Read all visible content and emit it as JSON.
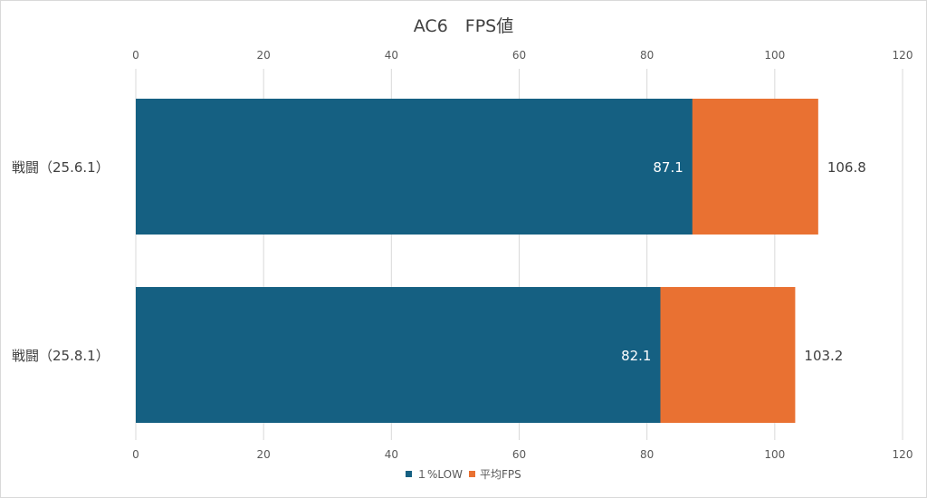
{
  "chart_data": {
    "type": "bar",
    "orientation": "horizontal",
    "stacking": "overlapped",
    "title": "AC6　FPS値",
    "categories": [
      "戦闘（25.6.1）",
      "戦闘（25.8.1）"
    ],
    "series": [
      {
        "name": "平均FPS",
        "values": [
          106.8,
          103.2
        ],
        "color": "#E97132",
        "label_position": "outside-end"
      },
      {
        "name": "１%LOW",
        "values": [
          87.1,
          82.1
        ],
        "color": "#156082",
        "label_position": "inside-end"
      }
    ],
    "xlim": [
      0,
      120
    ],
    "xticks": [
      0,
      20,
      40,
      60,
      80,
      100,
      120
    ],
    "tick_labels_top_and_bottom": true,
    "grid": true,
    "legend": {
      "placement": "bottom",
      "order": [
        "１%LOW",
        "平均FPS"
      ]
    }
  }
}
